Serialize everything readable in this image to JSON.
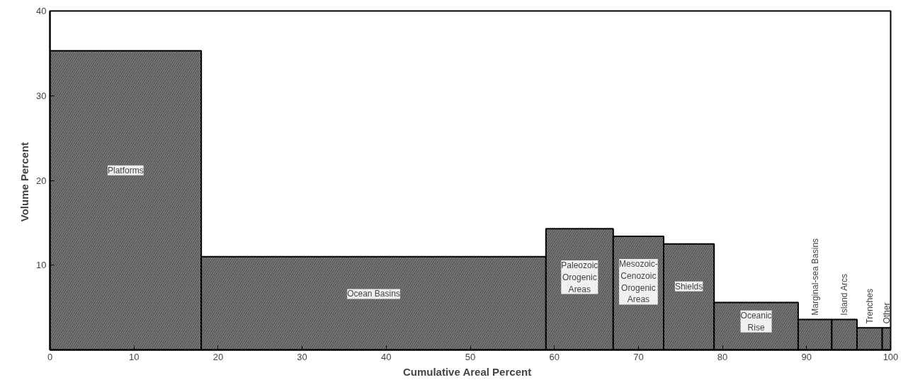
{
  "chart_data": {
    "type": "histogram",
    "xlabel": "Cumulative  Areal  Percent",
    "ylabel": "Volume  Percent",
    "bins": [
      0,
      18,
      59,
      67,
      73,
      79,
      89,
      93,
      96,
      99,
      100
    ],
    "values": [
      35.3,
      11.0,
      14.3,
      13.4,
      12.5,
      5.6,
      3.6,
      3.6,
      2.6,
      2.6
    ],
    "color": "#8c8c8c",
    "xlim": [
      0,
      100
    ],
    "ylim": [
      0,
      40
    ],
    "xticks": [
      0,
      10,
      20,
      30,
      40,
      50,
      60,
      70,
      80,
      90,
      100
    ],
    "yticks": [
      {
        "value": 0,
        "label": null
      },
      10,
      20,
      30,
      40
    ],
    "grid": false,
    "categories": [
      "Platforms",
      "Ocean Basins",
      "Paleozoic\nOrogenic\nAreas",
      "Mesozoic-\nCenozoic\nOrogenic\nAreas",
      "Shields",
      "Oceanic\nRise",
      "Marginal-sea Basins",
      "Island Arcs",
      "Trenches",
      "Other"
    ]
  }
}
